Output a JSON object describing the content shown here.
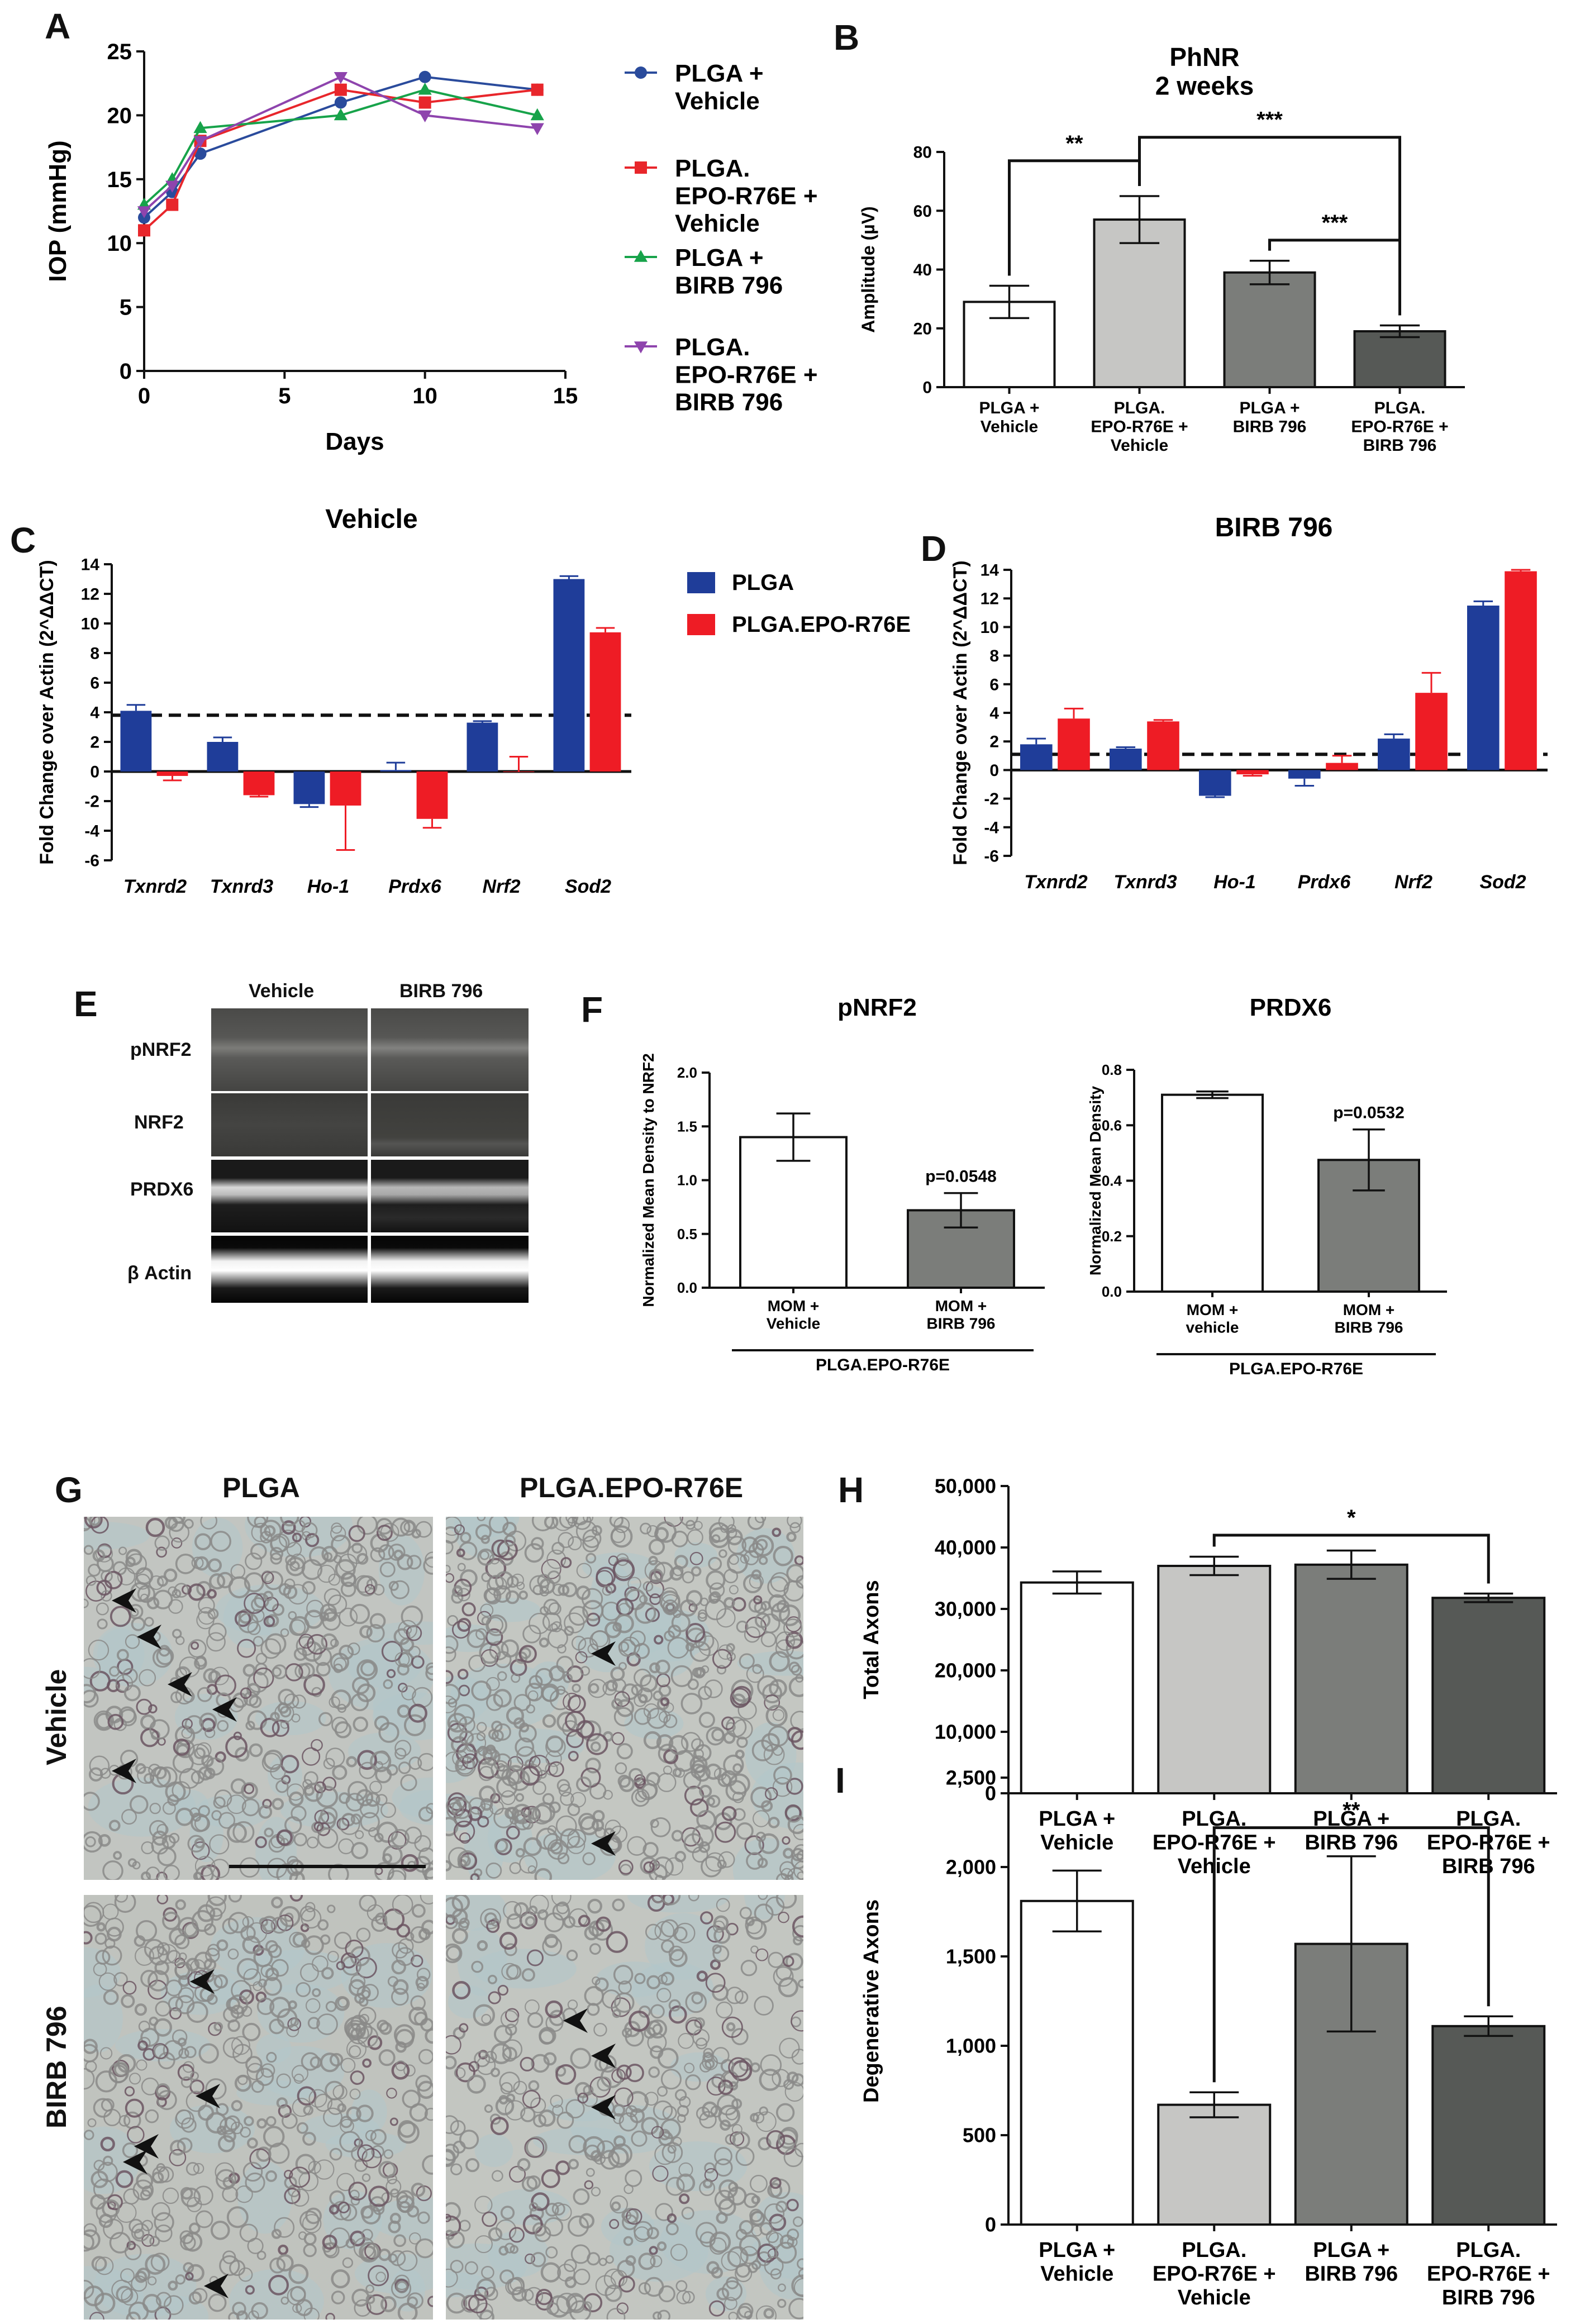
{
  "colors": {
    "plga_vehicle_line": "#2a4b9c",
    "epo_vehicle_line": "#e8262b",
    "plga_birb_line": "#17a34a",
    "epo_birb_line": "#8e44ad",
    "qpcr_plga": "#1f3d99",
    "qpcr_epo": "#ee1c25",
    "bar_white": "#ffffff",
    "bar_light": "#c6c6c4",
    "bar_mid": "#7b7d7a",
    "bar_dark": "#565956",
    "blot_bg": "#1c1c1c"
  },
  "panels": {
    "A": "A",
    "B": "B",
    "C": "C",
    "D": "D",
    "E": "E",
    "F": "F",
    "G": "G",
    "H": "H",
    "I": "I"
  },
  "chart_data": [
    {
      "id": "A",
      "type": "line",
      "xlabel": "Days",
      "ylabel": "IOP (mmHg)",
      "xlim": [
        0,
        15
      ],
      "ylim": [
        0,
        25
      ],
      "xticks": [
        0,
        5,
        10,
        15
      ],
      "yticks": [
        0,
        5,
        10,
        15,
        20,
        25
      ],
      "series": [
        {
          "name_lines": [
            "PLGA +",
            "Vehicle"
          ],
          "marker": "circle",
          "x": [
            0,
            1,
            2,
            7,
            10,
            14
          ],
          "y": [
            12,
            14,
            17,
            21,
            23,
            22
          ]
        },
        {
          "name_lines": [
            "PLGA.",
            "EPO-R76E +",
            "Vehicle"
          ],
          "marker": "square",
          "x": [
            0,
            1,
            2,
            7,
            10,
            14
          ],
          "y": [
            11,
            13,
            18,
            22,
            21,
            22
          ]
        },
        {
          "name_lines": [
            "PLGA +",
            "BIRB 796"
          ],
          "marker": "triangle-up",
          "x": [
            0,
            1,
            2,
            7,
            10,
            14
          ],
          "y": [
            13,
            15,
            19,
            20,
            22,
            20
          ]
        },
        {
          "name_lines": [
            "PLGA.",
            "EPO-R76E +",
            "BIRB 796"
          ],
          "marker": "triangle-down",
          "x": [
            0,
            1,
            2,
            7,
            10,
            14
          ],
          "y": [
            12.5,
            14.5,
            18,
            23,
            20,
            19
          ]
        }
      ]
    },
    {
      "id": "B",
      "type": "bar",
      "title_lines": [
        "PhNR",
        "2 weeks"
      ],
      "ylabel": "Amplitude (µV)",
      "ylim": [
        0,
        80
      ],
      "yticks": [
        0,
        20,
        40,
        60,
        80
      ],
      "categories": [
        [
          "PLGA +",
          "Vehicle"
        ],
        [
          "PLGA.",
          "EPO-R76E +",
          "Vehicle"
        ],
        [
          "PLGA +",
          "BIRB 796"
        ],
        [
          "PLGA.",
          "EPO-R76E +",
          "BIRB 796"
        ]
      ],
      "values": [
        29,
        57,
        39,
        19
      ],
      "errors": [
        5.5,
        8,
        4,
        2
      ],
      "significance": [
        {
          "from": 0,
          "to": 1,
          "label": "**",
          "level": 77
        },
        {
          "from": 1,
          "to": 3,
          "label": "***",
          "level": 85
        },
        {
          "from": 2,
          "to": 3,
          "label": "***",
          "level": 50
        }
      ]
    },
    {
      "id": "C",
      "type": "bar",
      "title": "Vehicle",
      "ylabel": "Fold Change over Actin (2^ΔΔCT)",
      "ylim": [
        -6,
        14
      ],
      "yticks": [
        -6,
        -4,
        -2,
        0,
        2,
        4,
        6,
        8,
        10,
        12,
        14
      ],
      "reference_line": 3.8,
      "categories": [
        "Txnrd2",
        "Txnrd3",
        "Ho-1",
        "Prdx6",
        "Nrf2",
        "Sod2"
      ],
      "series": [
        {
          "name": "PLGA",
          "values": [
            4.1,
            2.0,
            -2.2,
            0.1,
            3.3,
            13.0
          ],
          "errors": [
            0.4,
            0.3,
            0.2,
            0.5,
            0.1,
            0.2
          ]
        },
        {
          "name": "PLGA.EPO-R76E",
          "values": [
            -0.3,
            -1.6,
            -2.3,
            -3.2,
            0.0,
            9.4
          ],
          "errors": [
            0.3,
            0.1,
            3.0,
            0.6,
            1.0,
            0.3
          ]
        }
      ]
    },
    {
      "id": "D",
      "type": "bar",
      "title": "BIRB 796",
      "ylabel": "Fold Change over Actin (2^ΔΔCT)",
      "ylim": [
        -6,
        14
      ],
      "yticks": [
        -6,
        -4,
        -2,
        0,
        2,
        4,
        6,
        8,
        10,
        12,
        14
      ],
      "reference_line": 1.1,
      "categories": [
        "Txnrd2",
        "Txnrd3",
        "Ho-1",
        "Prdx6",
        "Nrf2",
        "Sod2"
      ],
      "series": [
        {
          "name": "PLGA",
          "values": [
            1.8,
            1.5,
            -1.8,
            -0.6,
            2.2,
            11.5
          ],
          "errors": [
            0.4,
            0.1,
            0.1,
            0.5,
            0.3,
            0.3
          ]
        },
        {
          "name": "PLGA.EPO-R76E",
          "values": [
            3.6,
            3.4,
            -0.3,
            0.5,
            5.4,
            13.9
          ],
          "errors": [
            0.7,
            0.1,
            0.1,
            0.5,
            1.4,
            0.1
          ]
        }
      ]
    },
    {
      "id": "F1",
      "type": "bar",
      "title": "pNRF2",
      "ylabel": "Normalized Mean Density to NRF2",
      "ylim": [
        0,
        2.0
      ],
      "yticks": [
        0.0,
        0.5,
        1.0,
        1.5,
        2.0
      ],
      "ytick_labels": [
        "0.0",
        "0.5",
        "1.0",
        "1.5",
        "2.0"
      ],
      "categories": [
        [
          "MOM +",
          "Vehicle"
        ],
        [
          "MOM +",
          "BIRB 796"
        ]
      ],
      "values": [
        1.4,
        0.72
      ],
      "errors": [
        0.22,
        0.16
      ],
      "pvalue": "p=0.0548",
      "group_label": "PLGA.EPO-R76E"
    },
    {
      "id": "F2",
      "type": "bar",
      "title": "PRDX6",
      "ylabel": "Normalized Mean Density",
      "ylim": [
        0,
        0.8
      ],
      "yticks": [
        0.0,
        0.2,
        0.4,
        0.6,
        0.8
      ],
      "ytick_labels": [
        "0.0",
        "0.2",
        "0.4",
        "0.6",
        "0.8"
      ],
      "categories": [
        [
          "MOM +",
          "vehicle"
        ],
        [
          "MOM +",
          "BIRB 796"
        ]
      ],
      "values": [
        0.71,
        0.475
      ],
      "errors": [
        0.012,
        0.11
      ],
      "pvalue": "p=0.0532",
      "group_label": "PLGA.EPO-R76E"
    },
    {
      "id": "H",
      "type": "bar",
      "ylabel": "Total Axons",
      "ylim": [
        0,
        50000
      ],
      "yticks": [
        0,
        10000,
        20000,
        30000,
        40000,
        50000
      ],
      "ytick_labels": [
        "0",
        "10,000",
        "20,000",
        "30,000",
        "40,000",
        "50,000"
      ],
      "categories": [
        [
          "PLGA +",
          "Vehicle"
        ],
        [
          "PLGA.",
          "EPO-R76E +",
          "Vehicle"
        ],
        [
          "PLGA +",
          "BIRB 796"
        ],
        [
          "PLGA.",
          "EPO-R76E +",
          "BIRB 796"
        ]
      ],
      "values": [
        34300,
        37000,
        37200,
        31800
      ],
      "errors": [
        1800,
        1500,
        2300,
        700
      ],
      "significance": [
        {
          "from": 1,
          "to": 3,
          "label": "*",
          "level": 42000
        }
      ]
    },
    {
      "id": "I",
      "type": "bar",
      "ylabel": "Degenerative Axons",
      "ylim": [
        0,
        2500
      ],
      "yticks": [
        0,
        500,
        1000,
        1500,
        2000,
        2500
      ],
      "ytick_labels": [
        "0",
        "500",
        "1,000",
        "1,500",
        "2,000",
        "2,500"
      ],
      "categories": [
        [
          "PLGA +",
          "Vehicle"
        ],
        [
          "PLGA.",
          "EPO-R76E +",
          "Vehicle"
        ],
        [
          "PLGA +",
          "BIRB 796"
        ],
        [
          "PLGA.",
          "EPO-R76E +",
          "BIRB 796"
        ]
      ],
      "values": [
        1810,
        670,
        1570,
        1110
      ],
      "errors": [
        170,
        70,
        490,
        55
      ],
      "significance": [
        {
          "from": 1,
          "to": 3,
          "label": "**",
          "level": 2220
        }
      ]
    }
  ],
  "blot": {
    "headers": [
      "Vehicle",
      "BIRB 796"
    ],
    "rows": [
      "pNRF2",
      "NRF2",
      "PRDX6",
      "β Actin"
    ]
  },
  "micrographs": {
    "columns": [
      "PLGA",
      "PLGA.EPO-R76E"
    ],
    "rows": [
      "Vehicle",
      "BIRB 796"
    ]
  }
}
